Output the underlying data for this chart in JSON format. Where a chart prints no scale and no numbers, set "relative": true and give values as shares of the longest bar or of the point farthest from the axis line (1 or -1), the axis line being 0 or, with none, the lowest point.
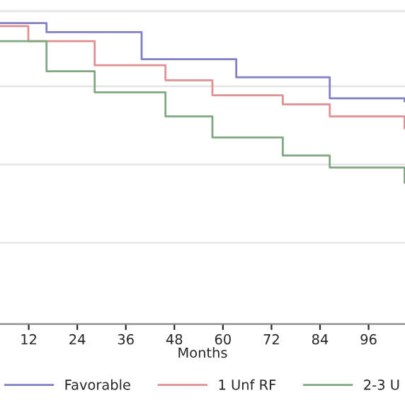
{
  "chart_data": {
    "type": "step",
    "relative": true,
    "xlabel": "Months",
    "xlim": [
      4.9,
      105
    ],
    "xticks": [
      12,
      24,
      36,
      48,
      60,
      72,
      84,
      96
    ],
    "tick_labels": "x",
    "grid": "y",
    "legend": "bottom",
    "line_style": "solid",
    "marker": "none",
    "series": [
      {
        "name": "Favorable",
        "color": "#8080c8",
        "x": [
          4.9,
          16.4,
          39.9,
          63.3,
          86.4,
          104.9
        ],
        "values": [
          1.0,
          0.97,
          0.88,
          0.82,
          0.75,
          0.74
        ]
      },
      {
        "name": "1 Unf RF",
        "color": "#e09090",
        "x": [
          4.9,
          11.9,
          28.3,
          45.8,
          57.4,
          74.8,
          86.4,
          104.9
        ],
        "values": [
          0.99,
          0.94,
          0.86,
          0.81,
          0.76,
          0.73,
          0.69,
          0.65
        ]
      },
      {
        "name": "2-3 U",
        "color": "#80a880",
        "x": [
          4.9,
          16.4,
          28.3,
          45.8,
          57.4,
          74.8,
          86.4,
          104.9
        ],
        "values": [
          0.94,
          0.84,
          0.77,
          0.69,
          0.62,
          0.56,
          0.52,
          0.47
        ]
      }
    ]
  }
}
